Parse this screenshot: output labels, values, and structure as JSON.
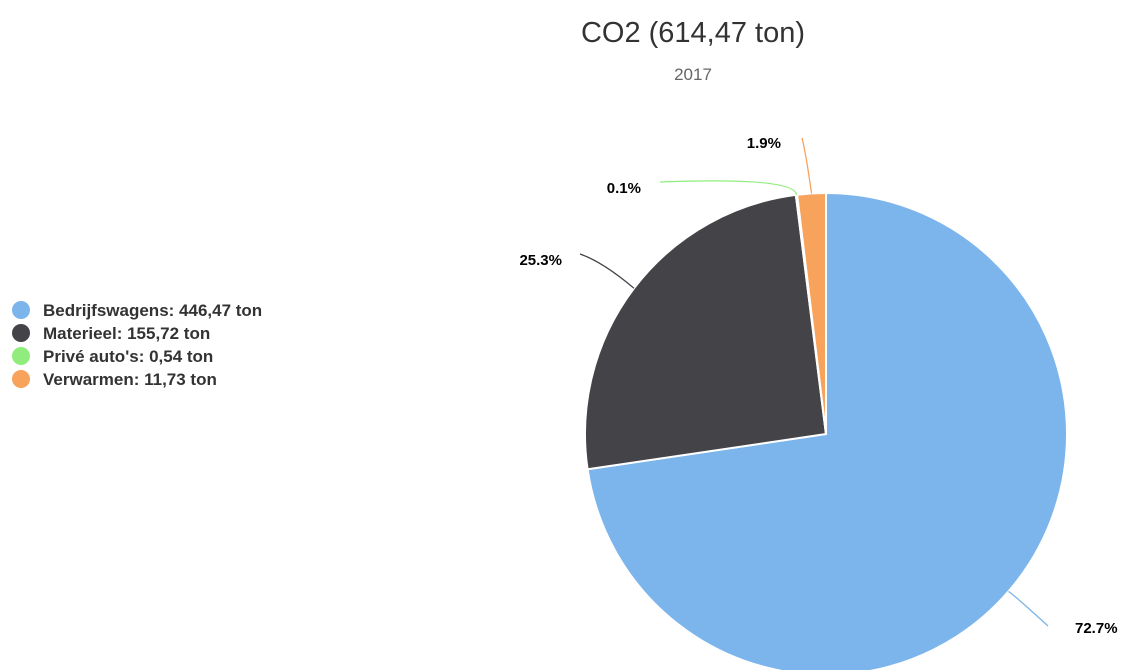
{
  "chart_data": {
    "type": "pie",
    "title": "CO2 (614,47 ton)",
    "subtitle": "2017",
    "legend_position": "left",
    "series": [
      {
        "legend_label": "Bedrijfswagens: 446,47 ton",
        "value": 446.47,
        "percent_label": "72.7%",
        "color": "#7cb5ec"
      },
      {
        "legend_label": "Materieel: 155,72 ton",
        "value": 155.72,
        "percent_label": "25.3%",
        "color": "#434348"
      },
      {
        "legend_label": "Privé auto's: 0,54 ton",
        "value": 0.54,
        "percent_label": "0.1%",
        "color": "#90ed7d"
      },
      {
        "legend_label": "Verwarmen: 11,73 ton",
        "value": 11.73,
        "percent_label": "1.9%",
        "color": "#f7a35c"
      }
    ]
  }
}
